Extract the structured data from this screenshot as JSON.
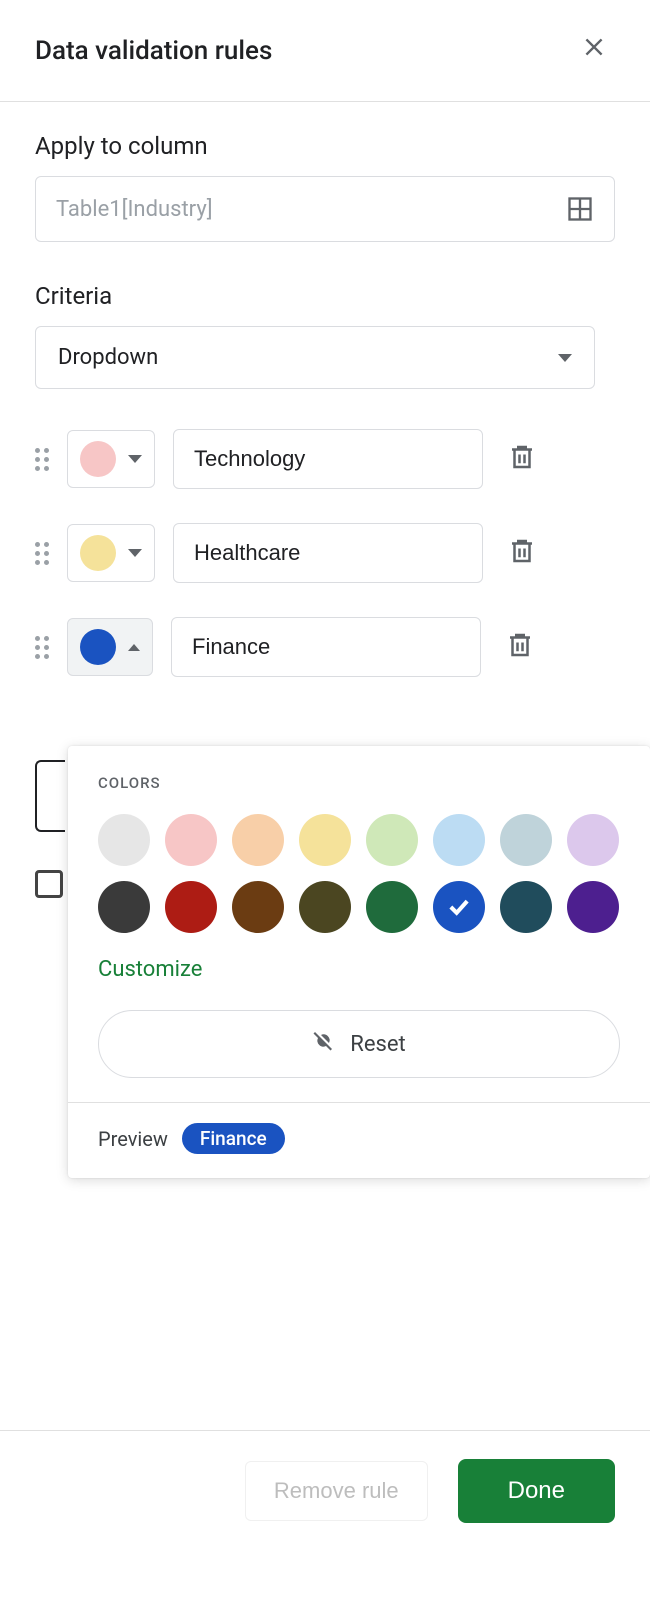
{
  "header": {
    "title": "Data validation rules"
  },
  "apply": {
    "label": "Apply to column",
    "value": "Table1[Industry]"
  },
  "criteria": {
    "label": "Criteria",
    "value": "Dropdown"
  },
  "options": [
    {
      "label": "Technology",
      "color": "#f7c6c6",
      "expanded": false
    },
    {
      "label": "Healthcare",
      "color": "#f5e29a",
      "expanded": false
    },
    {
      "label": "Finance",
      "color": "#1a53c1",
      "expanded": true
    }
  ],
  "colorPicker": {
    "heading": "COLORS",
    "customize": "Customize",
    "reset": "Reset",
    "previewLabel": "Preview",
    "previewText": "Finance",
    "previewBg": "#1a53c1",
    "selectedIndex": 13,
    "row1": [
      "#e6e6e6",
      "#f7c6c6",
      "#f8cfa8",
      "#f5e29a",
      "#cfe8b8",
      "#bcdcf3",
      "#bfd3da",
      "#dcc8ec"
    ],
    "row2": [
      "#3a3a3a",
      "#ad1c14",
      "#6b3c12",
      "#4b4621",
      "#1f6b3c",
      "#1a53c1",
      "#204c5c",
      "#4d1f8f"
    ]
  },
  "footer": {
    "remove": "Remove rule",
    "done": "Done"
  }
}
